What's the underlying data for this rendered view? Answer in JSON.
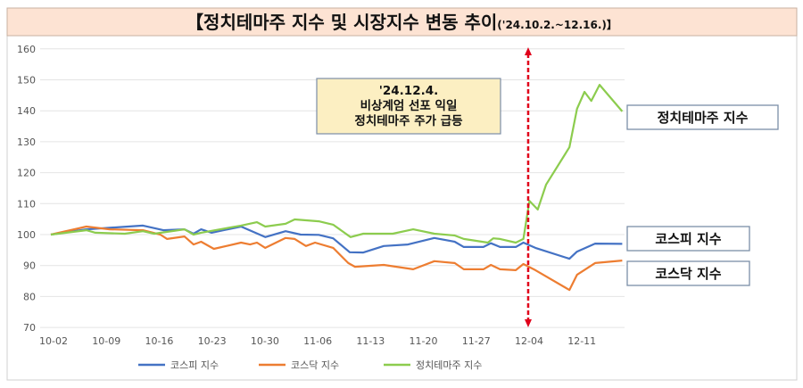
{
  "chart_data": {
    "type": "line",
    "title": "【정치테마주 지수 및 시장지수 변동 추이",
    "title_period": "('24.10.2.~12.16.)】",
    "xlabel": "",
    "ylabel": "",
    "x_unit": "days since 10-02",
    "xlim": [
      0,
      76
    ],
    "ylim": [
      70,
      160
    ],
    "yticks": [
      70,
      80,
      90,
      100,
      110,
      120,
      130,
      140,
      150,
      160
    ],
    "xticks": [
      {
        "day": 0,
        "label": "10-02"
      },
      {
        "day": 7,
        "label": "10-09"
      },
      {
        "day": 14,
        "label": "10-16"
      },
      {
        "day": 21,
        "label": "10-23"
      },
      {
        "day": 28,
        "label": "10-30"
      },
      {
        "day": 35,
        "label": "11-06"
      },
      {
        "day": 42,
        "label": "11-13"
      },
      {
        "day": 49,
        "label": "11-20"
      },
      {
        "day": 56,
        "label": "11-27"
      },
      {
        "day": 63,
        "label": "12-04"
      },
      {
        "day": 70,
        "label": "12-11"
      }
    ],
    "grid": true,
    "legend_position": "bottom",
    "series": [
      {
        "name": "코스피 지수",
        "color": "#4472c4",
        "end_label": "코스피 지수",
        "x": [
          0,
          4.7,
          12.2,
          14.9,
          17.7,
          18.9,
          19.9,
          21.3,
          25.2,
          28.4,
          31.1,
          33.1,
          35.5,
          37.4,
          39.6,
          41.4,
          44.1,
          47.3,
          50.8,
          53.5,
          54.7,
          57.3,
          58.3,
          59.5,
          61.6,
          62.6,
          64.2,
          68.7,
          69.7,
          72.1,
          75.7
        ],
        "y": [
          100,
          101.7,
          102.9,
          101.4,
          101.7,
          100.3,
          101.7,
          100.6,
          102.6,
          99.2,
          101.1,
          100,
          99.9,
          98.8,
          94.3,
          94.2,
          96.3,
          96.8,
          98.9,
          97.7,
          96,
          96,
          97.2,
          96,
          96,
          97.4,
          95.7,
          92.2,
          94.5,
          97.1,
          97
        ]
      },
      {
        "name": "코스닥 지수",
        "color": "#ed7d31",
        "end_label": "코스닥 지수",
        "x": [
          0,
          4.7,
          7.8,
          12.2,
          14.5,
          15.4,
          17.7,
          18.9,
          19.9,
          21.6,
          25.2,
          26.4,
          27.3,
          28.4,
          31.1,
          32.3,
          33.8,
          35,
          37.4,
          39.4,
          40.3,
          44.1,
          48,
          50.8,
          53.5,
          54.7,
          57.3,
          58.3,
          59.5,
          61.6,
          62.6,
          64.2,
          68.7,
          69.7,
          72.1,
          75.7
        ],
        "y": [
          100,
          102.6,
          101.7,
          101.4,
          100,
          98.6,
          99.4,
          96.8,
          97.7,
          95.4,
          97.4,
          96.8,
          97.4,
          95.7,
          98.9,
          98.6,
          96.3,
          97.4,
          95.7,
          90.8,
          89.6,
          90.2,
          88.8,
          91.4,
          90.8,
          88.8,
          88.8,
          90.2,
          88.8,
          88.5,
          90.5,
          88.5,
          82.1,
          87,
          90.8,
          91.6
        ]
      },
      {
        "name": "정치테마주 지수",
        "color": "#8ccc4e",
        "end_label": "정치테마주 지수",
        "x": [
          0,
          4.7,
          5.9,
          9.8,
          12.2,
          13.7,
          17.7,
          18.9,
          19.9,
          25.2,
          27.3,
          28.4,
          31.1,
          32.3,
          35.5,
          37.4,
          39.7,
          41.4,
          45.3,
          48,
          50.8,
          53.5,
          54.7,
          57.9,
          58.6,
          59.5,
          61.6,
          62.6,
          63.4,
          64.5,
          65.6,
          68.7,
          69.7,
          70.7,
          71.6,
          72.7,
          75.7
        ],
        "y": [
          100,
          101.4,
          100.6,
          100.3,
          101.1,
          100.3,
          101.7,
          100,
          100.6,
          102.9,
          104,
          102.6,
          103.5,
          104.9,
          104.3,
          103.2,
          99.2,
          100.3,
          100.3,
          101.7,
          100.3,
          99.7,
          98.6,
          97.4,
          98.8,
          98.6,
          97.4,
          98.6,
          110.9,
          108.1,
          116.1,
          128.2,
          140.6,
          146.1,
          143.2,
          148.4,
          139.8
        ]
      }
    ],
    "annotation": {
      "event_day": 63,
      "lines": [
        "'24.12.4.",
        "비상계엄 선포 익일",
        "정치테마주 주가 급등"
      ],
      "line_color": "#e0001b",
      "box_color": "#fcefc2"
    }
  }
}
